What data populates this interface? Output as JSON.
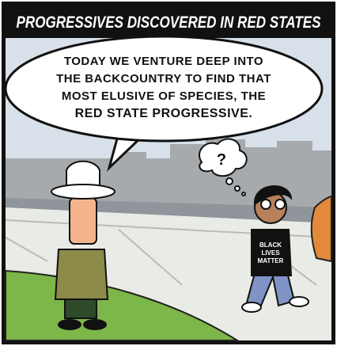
{
  "header": {
    "title": "PROGRESSIVES DISCOVERED IN RED STATES"
  },
  "speech_bubble": {
    "lines": [
      "TODAY WE VENTURE DEEP INTO",
      "THE BACKCOUNTRY TO FIND THAT",
      "MOST ELUSIVE OF SPECIES, THE",
      "RED STATE PROGRESSIVE."
    ]
  },
  "thought_bubble": {
    "text": "?"
  },
  "shirt": {
    "lines": [
      "BLACK",
      "LIVES",
      "MATTER"
    ]
  }
}
